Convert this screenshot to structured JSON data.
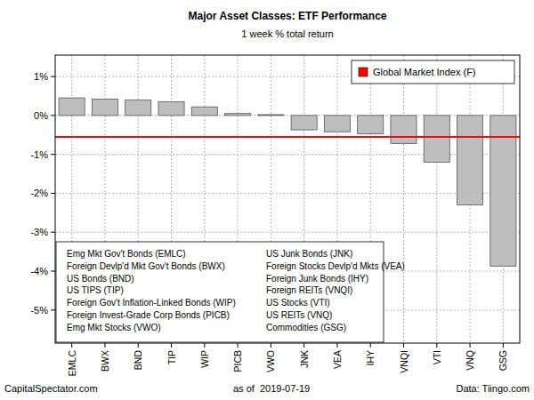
{
  "chart_data": {
    "type": "bar",
    "title": "Major Asset Classes: ETF Performance",
    "subtitle": "1 week % total return",
    "categories": [
      "EMLC",
      "BWX",
      "BND",
      "TIP",
      "WIP",
      "PICB",
      "VWO",
      "JNK",
      "VEA",
      "IHY",
      "VNQI",
      "VTI",
      "VNQ",
      "GSG"
    ],
    "values": [
      0.45,
      0.42,
      0.4,
      0.35,
      0.22,
      0.05,
      0.02,
      -0.37,
      -0.42,
      -0.47,
      -0.72,
      -1.2,
      -2.3,
      -3.87
    ],
    "category_descriptions": [
      "Emg Mkt Gov't Bonds (EMLC)",
      "Foreign Devlp'd Mkt Gov't Bonds (BWX)",
      "US Bonds (BND)",
      "US TIPS (TIP)",
      "Foreign Gov't Inflation-Linked Bonds (WIP)",
      "Foreign Invest-Grade Corp Bonds (PICB)",
      "Emg Mkt Stocks (VWO)",
      "US Junk Bonds (JNK)",
      "Foreign Stocks Devlp'd Mkts (VEA)",
      "Foreign Junk Bonds (IHY)",
      "Foreign REITs (VNQI)",
      "US Stocks (VTI)",
      "US REITs (VNQ)",
      "Commodities (GSG)"
    ],
    "color": "#bebebe",
    "reference_line": {
      "name": "Global Market Index (F)",
      "value": -0.55,
      "color": "#ff0000"
    },
    "ylim": [
      -5.85,
      1.55
    ],
    "yticks": [
      {
        "value": 1,
        "label": "1%"
      },
      {
        "value": 0,
        "label": "0%"
      },
      {
        "value": -1,
        "label": "-1%"
      },
      {
        "value": -2,
        "label": "-2%"
      },
      {
        "value": -3,
        "label": "-3%"
      },
      {
        "value": -4,
        "label": "-4%"
      },
      {
        "value": -5,
        "label": "-5%"
      }
    ],
    "grid": true,
    "legend": "top-right",
    "source": "CapitalSpectator.com",
    "date_note": "as of  2019-07-19",
    "data_source": "Data: Tiingo.com"
  }
}
